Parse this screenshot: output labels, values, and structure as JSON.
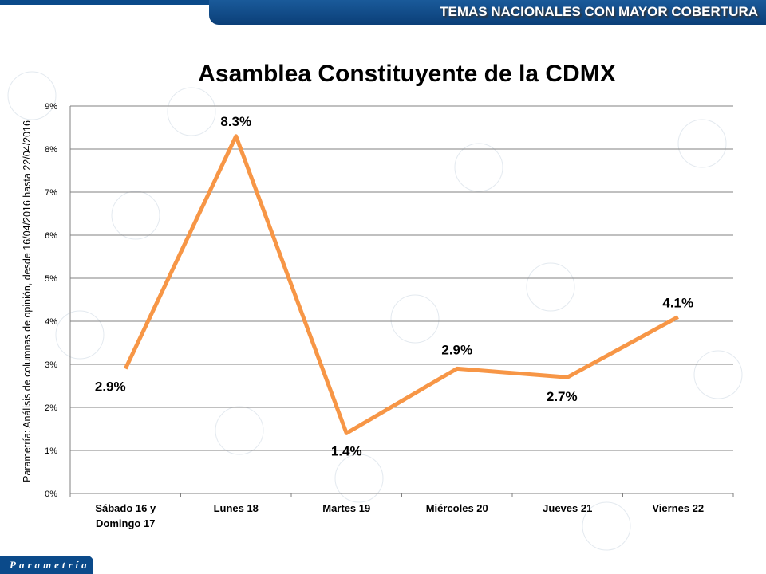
{
  "header": {
    "banner": "TEMAS NACIONALES CON MAYOR COBERTURA"
  },
  "footer": {
    "logo": "Parametría"
  },
  "side_note": "Parametría: Análisis de columnas de opinión, desde 16/04/2016 hasta 22/04/2016",
  "colors": {
    "line": "#F79646",
    "brand": "#0B4A8A",
    "grid": "#808080"
  },
  "chart_data": {
    "type": "line",
    "title": "Asamblea Constituyente de la CDMX",
    "categories": [
      [
        "Sábado 16 y",
        "Domingo 17"
      ],
      [
        "Lunes 18"
      ],
      [
        "Martes 19"
      ],
      [
        "Miércoles 20"
      ],
      [
        "Jueves 21"
      ],
      [
        "Viernes 22"
      ]
    ],
    "values": [
      2.9,
      8.3,
      1.4,
      2.9,
      2.7,
      4.1
    ],
    "data_labels": [
      "2.9%",
      "8.3%",
      "1.4%",
      "2.9%",
      "2.7%",
      "4.1%"
    ],
    "ylim": [
      0,
      9
    ],
    "yticks": [
      "0%",
      "1%",
      "2%",
      "3%",
      "4%",
      "5%",
      "6%",
      "7%",
      "8%",
      "9%"
    ],
    "grid": true,
    "legend": "none"
  }
}
